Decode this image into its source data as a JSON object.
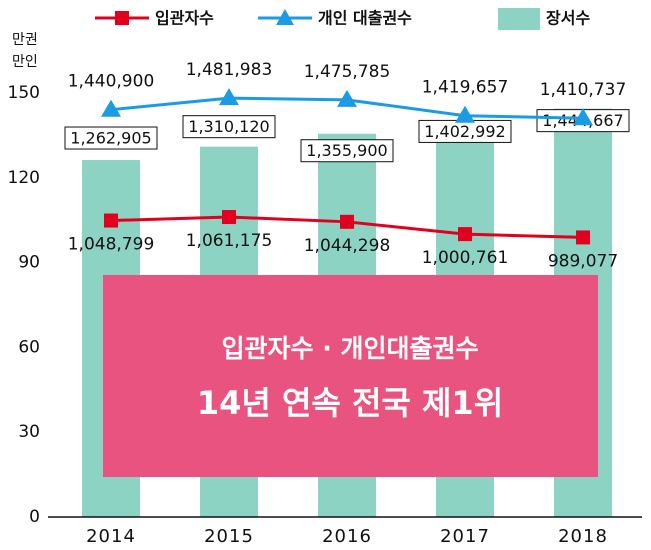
{
  "chart_data": {
    "type": "combo",
    "ylabel": [
      "만권",
      "만인"
    ],
    "categories": [
      "2014",
      "2015",
      "2016",
      "2017",
      "2018"
    ],
    "series": [
      {
        "name": "장서수",
        "type": "bar",
        "color": "#8dd3c3",
        "values": [
          126.2905,
          131.012,
          135.59,
          140.2992,
          144.4667
        ],
        "value_labels": [
          "1,262,905",
          "1,310,120",
          "1,355,900",
          "1,402,992",
          "1,444,667"
        ]
      },
      {
        "name": "입관자수",
        "type": "line",
        "color": "#e2001f",
        "values": [
          104.8799,
          106.1175,
          104.4298,
          100.0761,
          98.9077
        ],
        "value_labels": [
          "1,048,799",
          "1,061,175",
          "1,044,298",
          "1,000,761",
          "989,077"
        ]
      },
      {
        "name": "개인 대출권수",
        "type": "line",
        "color": "#1b9ce2",
        "values": [
          144.09,
          148.1983,
          147.5785,
          141.9657,
          141.0737
        ],
        "value_labels": [
          "1,440,900",
          "1,481,983",
          "1,475,785",
          "1,419,657",
          "1,410,737"
        ]
      }
    ],
    "ylim": [
      0,
      150
    ],
    "yticks": [
      0,
      30,
      60,
      90,
      120,
      150
    ],
    "annotations": [
      "입관자수 · 개인대출권수",
      "14년 연속 전국 제1위"
    ],
    "legend": "top"
  }
}
